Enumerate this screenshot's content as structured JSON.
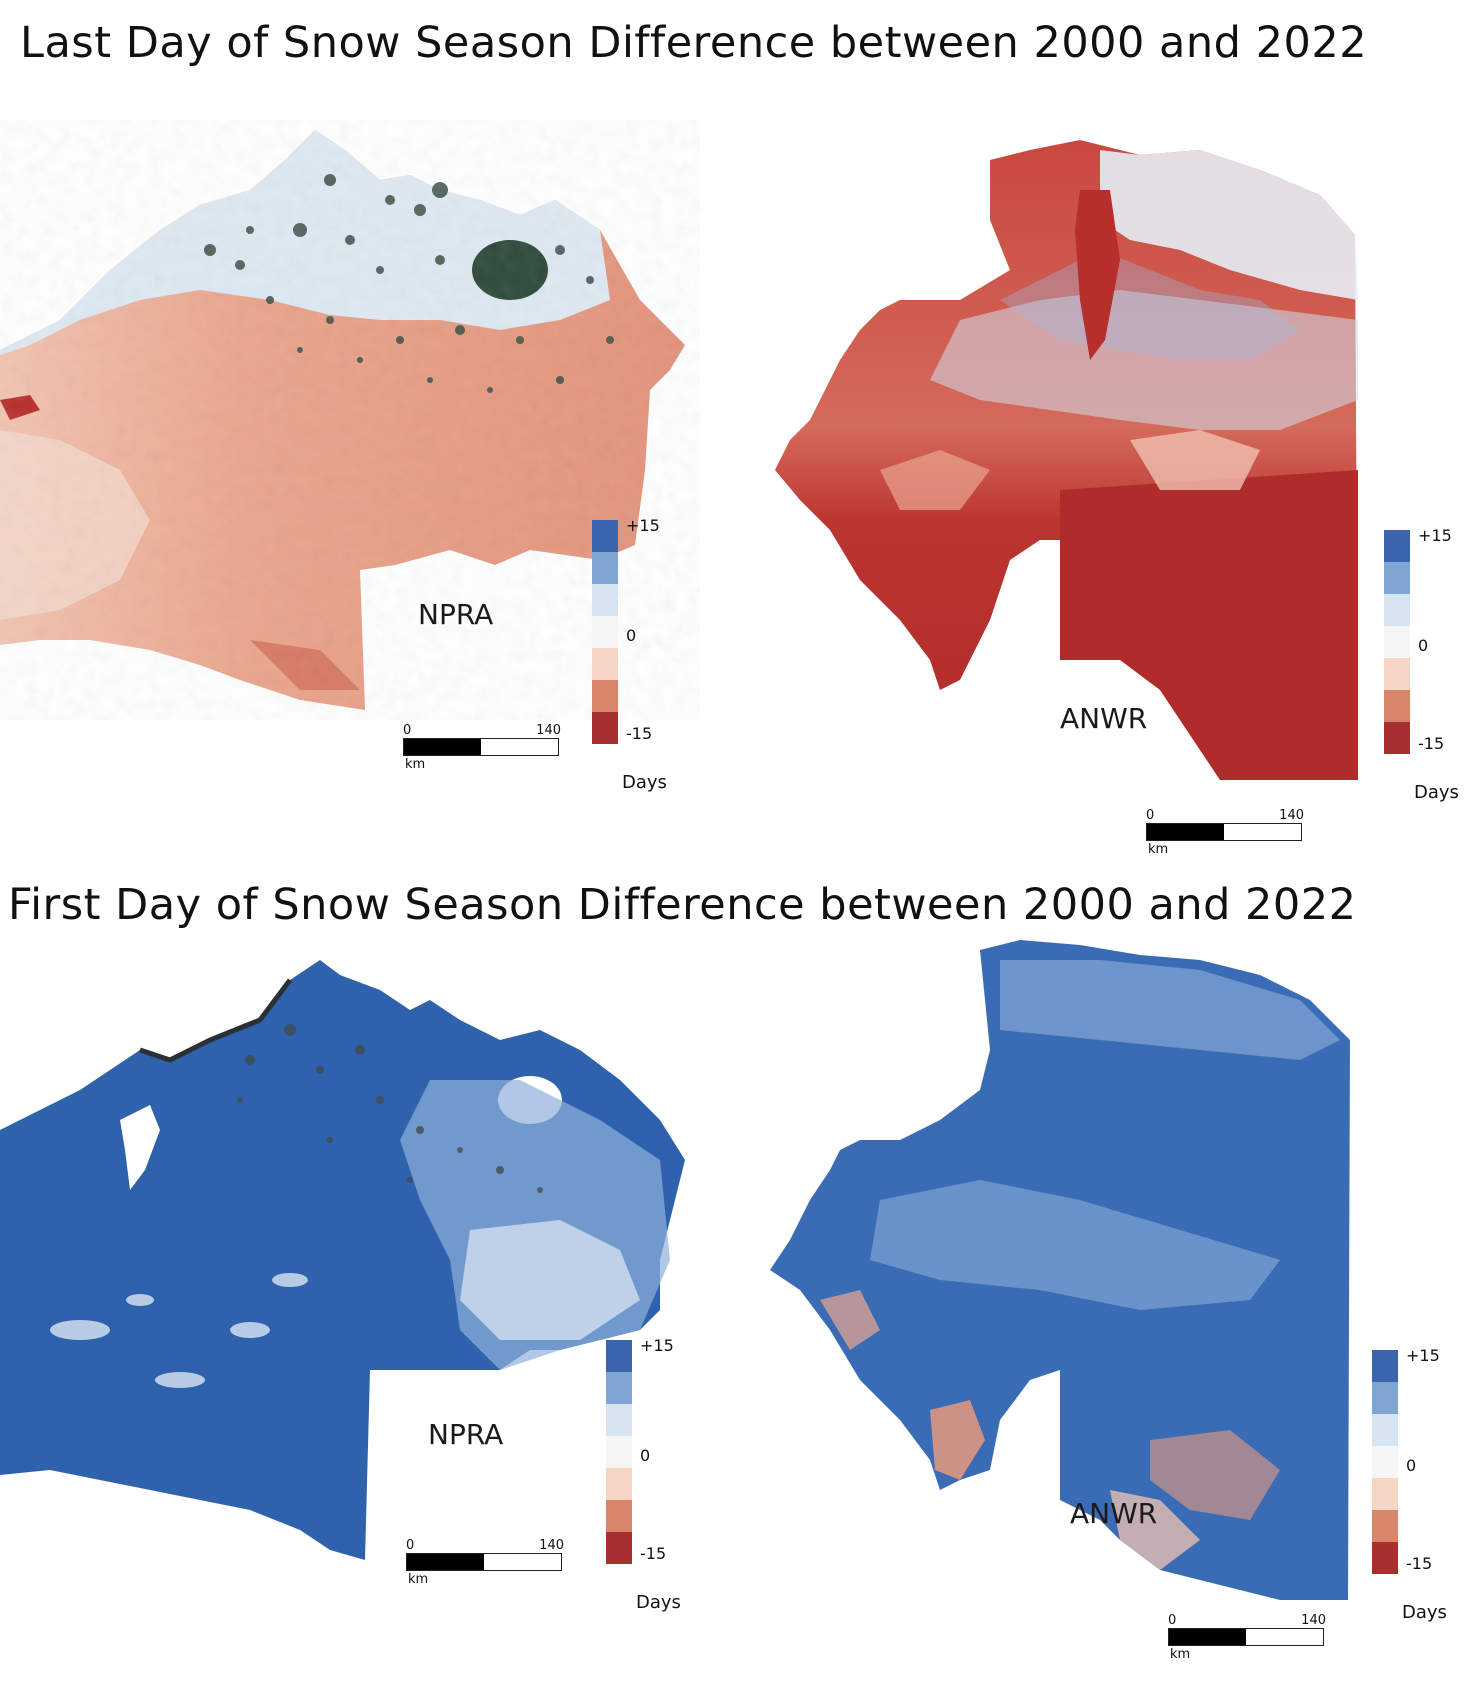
{
  "titles": {
    "last_day": "Last Day of Snow Season Difference between 2000 and 2022",
    "first_day": "First Day of Snow Season Difference between 2000 and 2022"
  },
  "regions": {
    "npra": "NPRA",
    "anwr": "ANWR"
  },
  "scale_bar": {
    "start": "0",
    "end": "140",
    "unit": "km"
  },
  "legend": {
    "max_label": "+15",
    "zero_label": "0",
    "min_label": "-15",
    "unit": "Days",
    "colors": [
      "#3a65ad",
      "#7fa6d2",
      "#d7e5f2",
      "#f5f5f5",
      "#f6d5c4",
      "#d8866b",
      "#a82f2f"
    ]
  },
  "palette": {
    "light_blue": "#dde8f3",
    "salmon": "#e8997e",
    "deep_red": "#b8302c",
    "mid_red": "#cf5a48",
    "deep_blue": "#2f62ad",
    "mid_blue": "#6f9bd0",
    "lake": "#2f4a3a"
  }
}
